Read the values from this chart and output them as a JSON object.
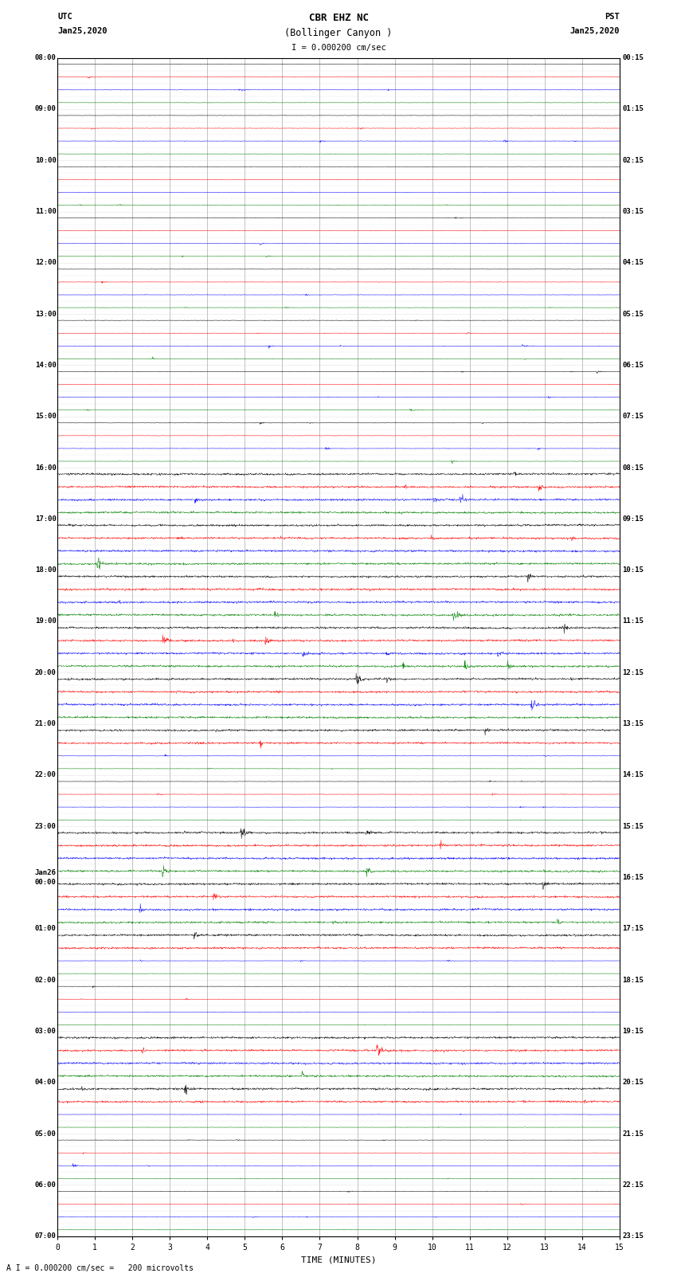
{
  "title_line1": "CBR EHZ NC",
  "title_line2": "(Bollinger Canyon )",
  "scale_label": "I = 0.000200 cm/sec",
  "utc_label_line1": "UTC",
  "utc_label_line2": "Jan25,2020",
  "pst_label_line1": "PST",
  "pst_label_line2": "Jan25,2020",
  "bottom_label": "A I = 0.000200 cm/sec =   200 microvolts",
  "xlabel": "TIME (MINUTES)",
  "figsize": [
    8.5,
    16.13
  ],
  "dpi": 100,
  "n_traces": 92,
  "minutes_per_trace": 15,
  "colors_cycle": [
    "black",
    "red",
    "blue",
    "green"
  ],
  "background": "white",
  "grid_color": "#aaaaaa",
  "trace_amplitude_base": 0.025,
  "trace_amplitude_active": 0.12,
  "active_trace_indices": [
    32,
    33,
    34,
    35,
    36,
    37,
    38,
    39,
    40,
    41,
    42,
    43,
    44,
    45,
    46,
    47,
    48,
    49,
    50,
    51,
    52,
    53,
    60,
    61,
    62,
    63,
    64,
    65,
    66,
    67,
    68,
    69,
    76,
    77,
    78,
    79,
    80,
    81
  ],
  "left_labels_utc": [
    [
      "08:00",
      0
    ],
    [
      "09:00",
      4
    ],
    [
      "10:00",
      8
    ],
    [
      "11:00",
      12
    ],
    [
      "12:00",
      16
    ],
    [
      "13:00",
      20
    ],
    [
      "14:00",
      24
    ],
    [
      "15:00",
      28
    ],
    [
      "16:00",
      32
    ],
    [
      "17:00",
      36
    ],
    [
      "18:00",
      40
    ],
    [
      "19:00",
      44
    ],
    [
      "20:00",
      48
    ],
    [
      "21:00",
      52
    ],
    [
      "22:00",
      56
    ],
    [
      "23:00",
      60
    ],
    [
      "Jan26",
      64
    ],
    [
      "00:00",
      64
    ],
    [
      "01:00",
      68
    ],
    [
      "02:00",
      72
    ],
    [
      "03:00",
      76
    ],
    [
      "04:00",
      80
    ],
    [
      "05:00",
      84
    ],
    [
      "06:00",
      88
    ],
    [
      "07:00",
      92
    ]
  ],
  "right_labels_pst": [
    [
      "00:15",
      0
    ],
    [
      "01:15",
      4
    ],
    [
      "02:15",
      8
    ],
    [
      "03:15",
      12
    ],
    [
      "04:15",
      16
    ],
    [
      "05:15",
      20
    ],
    [
      "06:15",
      24
    ],
    [
      "07:15",
      28
    ],
    [
      "08:15",
      32
    ],
    [
      "09:15",
      36
    ],
    [
      "10:15",
      40
    ],
    [
      "11:15",
      44
    ],
    [
      "12:15",
      48
    ],
    [
      "13:15",
      52
    ],
    [
      "14:15",
      56
    ],
    [
      "15:15",
      60
    ],
    [
      "16:15",
      64
    ],
    [
      "17:15",
      68
    ],
    [
      "18:15",
      72
    ],
    [
      "19:15",
      76
    ],
    [
      "20:15",
      80
    ],
    [
      "21:15",
      84
    ],
    [
      "22:15",
      88
    ],
    [
      "23:15",
      92
    ]
  ]
}
